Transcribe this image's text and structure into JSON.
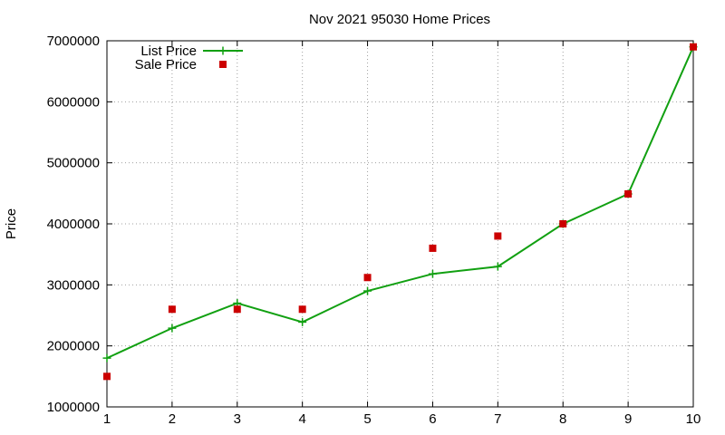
{
  "chart_data": {
    "type": "line",
    "title": "Nov 2021 95030 Home Prices",
    "xlabel": "",
    "ylabel": "Price",
    "x": [
      1,
      2,
      3,
      4,
      5,
      6,
      7,
      8,
      9,
      10
    ],
    "xlim": [
      1,
      10
    ],
    "ylim": [
      1000000,
      7000000
    ],
    "xticks": [
      "1",
      "2",
      "3",
      "4",
      "5",
      "6",
      "7",
      "8",
      "9",
      "10"
    ],
    "yticks": [
      "1000000",
      "2000000",
      "3000000",
      "4000000",
      "5000000",
      "6000000",
      "7000000"
    ],
    "grid": true,
    "legend_position": "top-left",
    "series": [
      {
        "name": "List Price",
        "style": "linespoints",
        "marker": "plus",
        "color": "#11a011",
        "values": [
          1800000,
          2290000,
          2700000,
          2390000,
          2900000,
          3180000,
          3300000,
          4000000,
          4490000,
          6900000
        ]
      },
      {
        "name": "Sale Price",
        "style": "points",
        "marker": "square",
        "color": "#cc0000",
        "values": [
          1500000,
          2600000,
          2600000,
          2600000,
          3120000,
          3600000,
          3800000,
          4000000,
          4490000,
          6900000
        ]
      }
    ]
  }
}
